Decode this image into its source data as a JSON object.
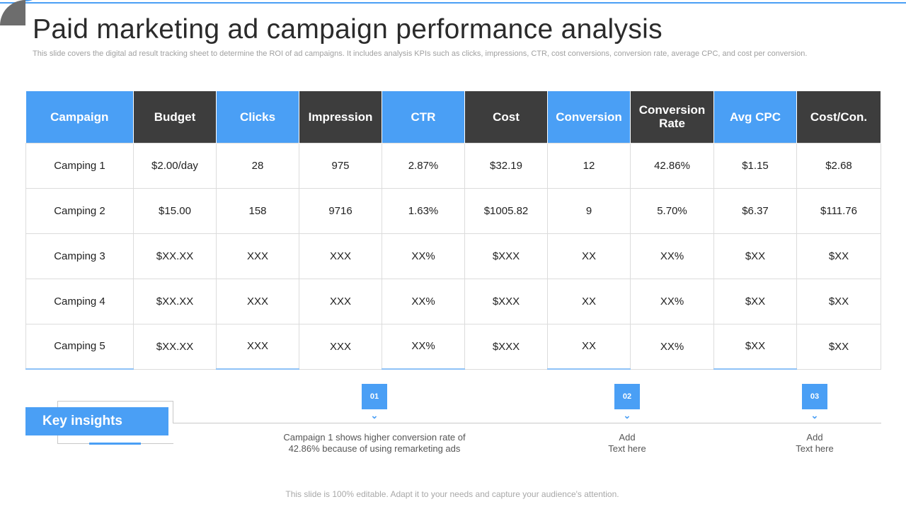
{
  "title": "Paid marketing ad campaign performance analysis",
  "subtitle": "This slide covers the digital ad result tracking sheet to determine the ROI of ad campaigns. It includes analysis KPIs such as clicks, impressions, CTR, cost conversions, conversion rate, average CPC, and cost per conversion.",
  "colors": {
    "accent": "#4a9ff5",
    "dark": "#3d3d3d"
  },
  "table": {
    "headers": [
      "Campaign",
      "Budget",
      "Clicks",
      "Impression",
      "CTR",
      "Cost",
      "Conversion",
      "Conversion Rate",
      "Avg CPC",
      "Cost/Con."
    ],
    "header_style": [
      "blue",
      "dark",
      "blue",
      "dark",
      "blue",
      "dark",
      "blue",
      "dark",
      "blue",
      "dark"
    ],
    "rows": [
      [
        "Camping 1",
        "$2.00/day",
        "28",
        "975",
        "2.87%",
        "$32.19",
        "12",
        "42.86%",
        "$1.15",
        "$2.68"
      ],
      [
        "Camping 2",
        "$15.00",
        "158",
        "9716",
        "1.63%",
        "$1005.82",
        "9",
        "5.70%",
        "$6.37",
        "$111.76"
      ],
      [
        "Camping 3",
        "$XX.XX",
        "XXX",
        "XXX",
        "XX%",
        "$XXX",
        "XX",
        "XX%",
        "$XX",
        "$XX"
      ],
      [
        "Camping 4",
        "$XX.XX",
        "XXX",
        "XXX",
        "XX%",
        "$XXX",
        "XX",
        "XX%",
        "$XX",
        "$XX"
      ],
      [
        "Camping 5",
        "$XX.XX",
        "XXX",
        "XXX",
        "XX%",
        "$XXX",
        "XX",
        "XX%",
        "$XX",
        "$XX"
      ]
    ]
  },
  "key_insights": {
    "label": "Key insights",
    "items": [
      {
        "number": "01",
        "text_line1": "Campaign 1 shows higher conversion rate of",
        "text_line2": "42.86% because of using remarketing ads"
      },
      {
        "number": "02",
        "text_line1": "Add",
        "text_line2": "Text here"
      },
      {
        "number": "03",
        "text_line1": "Add",
        "text_line2": "Text here"
      }
    ],
    "chevron_icon": "chevron-down-icon"
  },
  "footer": "This slide is 100% editable. Adapt it to your needs and capture your audience's attention."
}
